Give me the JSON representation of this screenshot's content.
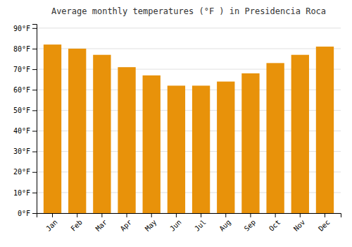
{
  "chart_data": {
    "type": "bar",
    "title": "Average monthly temperatures (°F ) in Presidencia Roca",
    "categories": [
      "Jan",
      "Feb",
      "Mar",
      "Apr",
      "May",
      "Jun",
      "Jul",
      "Aug",
      "Sep",
      "Oct",
      "Nov",
      "Dec"
    ],
    "values": [
      82,
      80,
      77,
      71,
      67,
      62,
      62,
      64,
      68,
      73,
      77,
      81
    ],
    "color": "#E8920A",
    "ylim": [
      0,
      92
    ],
    "yticks": [
      {
        "value": 0,
        "label": "0°F"
      },
      {
        "value": 10,
        "label": "10°F"
      },
      {
        "value": 20,
        "label": "20°F"
      },
      {
        "value": 30,
        "label": "30°F"
      },
      {
        "value": 40,
        "label": "40°F"
      },
      {
        "value": 50,
        "label": "50°F"
      },
      {
        "value": 60,
        "label": "60°F"
      },
      {
        "value": 70,
        "label": "70°F"
      },
      {
        "value": 80,
        "label": "80°F"
      },
      {
        "value": 90,
        "label": "90°F"
      }
    ],
    "grid": true
  }
}
